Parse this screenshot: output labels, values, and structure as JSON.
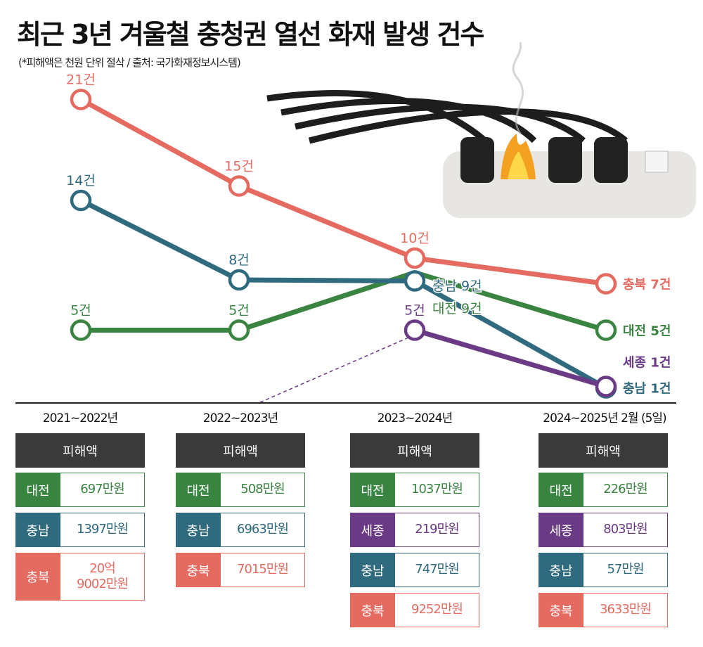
{
  "title": "최근 3년 겨울철 충청권 열선 화재 발생 건수",
  "subtitle": "(*피해액은 천원 단위 절삭 / 출처: 국가화재정보시스템)",
  "colors": {
    "충북": "#e56b61",
    "충남": "#2f6a7e",
    "대전": "#3a8442",
    "세종": "#6b3a85",
    "header": "#3a3a3a"
  },
  "chart_data": {
    "type": "line",
    "categories": [
      "2021~2022년",
      "2022~2023년",
      "2023~2024년",
      "2024~2025년 2월 (5일)"
    ],
    "unit": "건",
    "series": [
      {
        "name": "충북",
        "values": [
          21,
          15,
          10,
          7
        ],
        "labels": [
          "21건",
          "15건",
          "10건",
          "충북 7건"
        ]
      },
      {
        "name": "충남",
        "values": [
          14,
          8,
          9,
          1
        ],
        "labels": [
          "14건",
          "8건",
          "충남 9건",
          "충남 1건"
        ]
      },
      {
        "name": "대전",
        "values": [
          5,
          5,
          9,
          5
        ],
        "labels": [
          "5건",
          "5건",
          "대전 9건",
          "대전 5건"
        ]
      },
      {
        "name": "세종",
        "values": [
          null,
          null,
          5,
          1
        ],
        "labels": [
          "",
          "",
          "5건",
          "세종 1건"
        ]
      }
    ]
  },
  "tables": [
    {
      "period": "2021~2022년",
      "header": "피해액",
      "rows": [
        {
          "region": "대전",
          "amount": "697만원"
        },
        {
          "region": "충남",
          "amount": "1397만원"
        },
        {
          "region": "충북",
          "amount": "20억\n9002만원"
        }
      ]
    },
    {
      "period": "2022~2023년",
      "header": "피해액",
      "rows": [
        {
          "region": "대전",
          "amount": "508만원"
        },
        {
          "region": "충남",
          "amount": "6963만원"
        },
        {
          "region": "충북",
          "amount": "7015만원"
        }
      ]
    },
    {
      "period": "2023~2024년",
      "header": "피해액",
      "rows": [
        {
          "region": "대전",
          "amount": "1037만원"
        },
        {
          "region": "세종",
          "amount": "219만원"
        },
        {
          "region": "충남",
          "amount": "747만원"
        },
        {
          "region": "충북",
          "amount": "9252만원"
        }
      ]
    },
    {
      "period": "2024~2025년 2월 (5일)",
      "header": "피해액",
      "rows": [
        {
          "region": "대전",
          "amount": "226만원"
        },
        {
          "region": "세종",
          "amount": "803만원"
        },
        {
          "region": "충남",
          "amount": "57만원"
        },
        {
          "region": "충북",
          "amount": "3633만원"
        }
      ]
    }
  ]
}
